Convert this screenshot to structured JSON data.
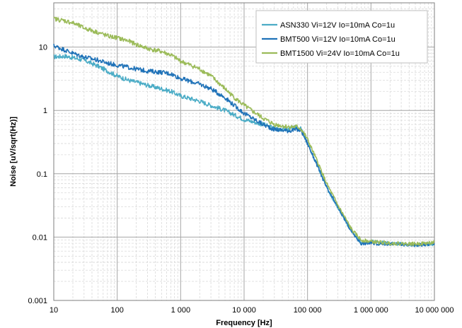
{
  "chart_data": {
    "type": "line",
    "x_scale": "log",
    "y_scale": "log",
    "xlim": [
      10,
      10000000
    ],
    "ylim": [
      0.001,
      50
    ],
    "xlabel": "Frequency [Hz]",
    "ylabel": "Noise [uV/sqrt(Hz)]",
    "grid": true,
    "legend_position": "top-right",
    "x_ticks": [
      10,
      100,
      1000,
      10000,
      100000,
      1000000,
      10000000
    ],
    "x_tick_labels": [
      "10",
      "100",
      "1 000",
      "10 000",
      "100 000",
      "1 000 000",
      "10 000 000"
    ],
    "y_ticks": [
      0.001,
      0.01,
      0.1,
      1,
      10
    ],
    "y_tick_labels": [
      "0.001",
      "0.01",
      "0.1",
      "1",
      "10"
    ],
    "series": [
      {
        "name": "ASN330 Vi=12V Io=10mA Co=1u",
        "color": "#4bacc6",
        "x": [
          10,
          15,
          20,
          30,
          50,
          70,
          100,
          150,
          200,
          300,
          500,
          700,
          1000,
          2000,
          3000,
          5000,
          7000,
          10000,
          20000,
          30000,
          50000,
          70000,
          80000,
          100000,
          150000,
          200000,
          300000,
          500000,
          700000,
          1000000,
          2000000,
          5000000,
          10000000
        ],
        "y": [
          7,
          7.2,
          6.8,
          6.2,
          5.0,
          4.2,
          3.5,
          3.0,
          2.8,
          2.5,
          2.2,
          2.0,
          1.7,
          1.4,
          1.2,
          1.0,
          0.85,
          0.72,
          0.6,
          0.52,
          0.5,
          0.55,
          0.5,
          0.3,
          0.12,
          0.06,
          0.03,
          0.012,
          0.008,
          0.0085,
          0.008,
          0.0075,
          0.0078
        ]
      },
      {
        "name": "BMT500 Vi=12V Io=10mA Co=1u",
        "color": "#1f72b8",
        "x": [
          10,
          15,
          20,
          30,
          50,
          70,
          100,
          150,
          200,
          300,
          500,
          700,
          1000,
          2000,
          3000,
          5000,
          7000,
          10000,
          20000,
          30000,
          50000,
          70000,
          80000,
          100000,
          150000,
          200000,
          300000,
          500000,
          700000,
          1000000,
          2000000,
          5000000,
          10000000
        ],
        "y": [
          10.5,
          9.0,
          8.0,
          7.0,
          6.2,
          5.6,
          5.2,
          4.8,
          4.5,
          4.2,
          4.0,
          3.8,
          3.2,
          2.6,
          2.2,
          1.6,
          1.2,
          0.9,
          0.6,
          0.5,
          0.48,
          0.5,
          0.48,
          0.3,
          0.12,
          0.06,
          0.03,
          0.012,
          0.008,
          0.008,
          0.0078,
          0.0075,
          0.0078
        ]
      },
      {
        "name": "BMT1500 Vi=24V Io=10mA Co=1u",
        "color": "#9bbb59",
        "x": [
          10,
          15,
          20,
          30,
          50,
          70,
          100,
          150,
          200,
          300,
          500,
          700,
          1000,
          2000,
          3000,
          5000,
          7000,
          10000,
          20000,
          30000,
          50000,
          70000,
          80000,
          100000,
          150000,
          200000,
          300000,
          500000,
          700000,
          1000000,
          2000000,
          5000000,
          10000000
        ],
        "y": [
          28,
          26,
          24,
          20,
          17,
          15,
          14,
          12.5,
          11,
          9.5,
          8.5,
          7.5,
          6.0,
          4.5,
          3.5,
          2.2,
          1.6,
          1.2,
          0.75,
          0.6,
          0.55,
          0.55,
          0.5,
          0.35,
          0.14,
          0.07,
          0.032,
          0.013,
          0.009,
          0.0085,
          0.008,
          0.0078,
          0.0082
        ]
      }
    ]
  }
}
